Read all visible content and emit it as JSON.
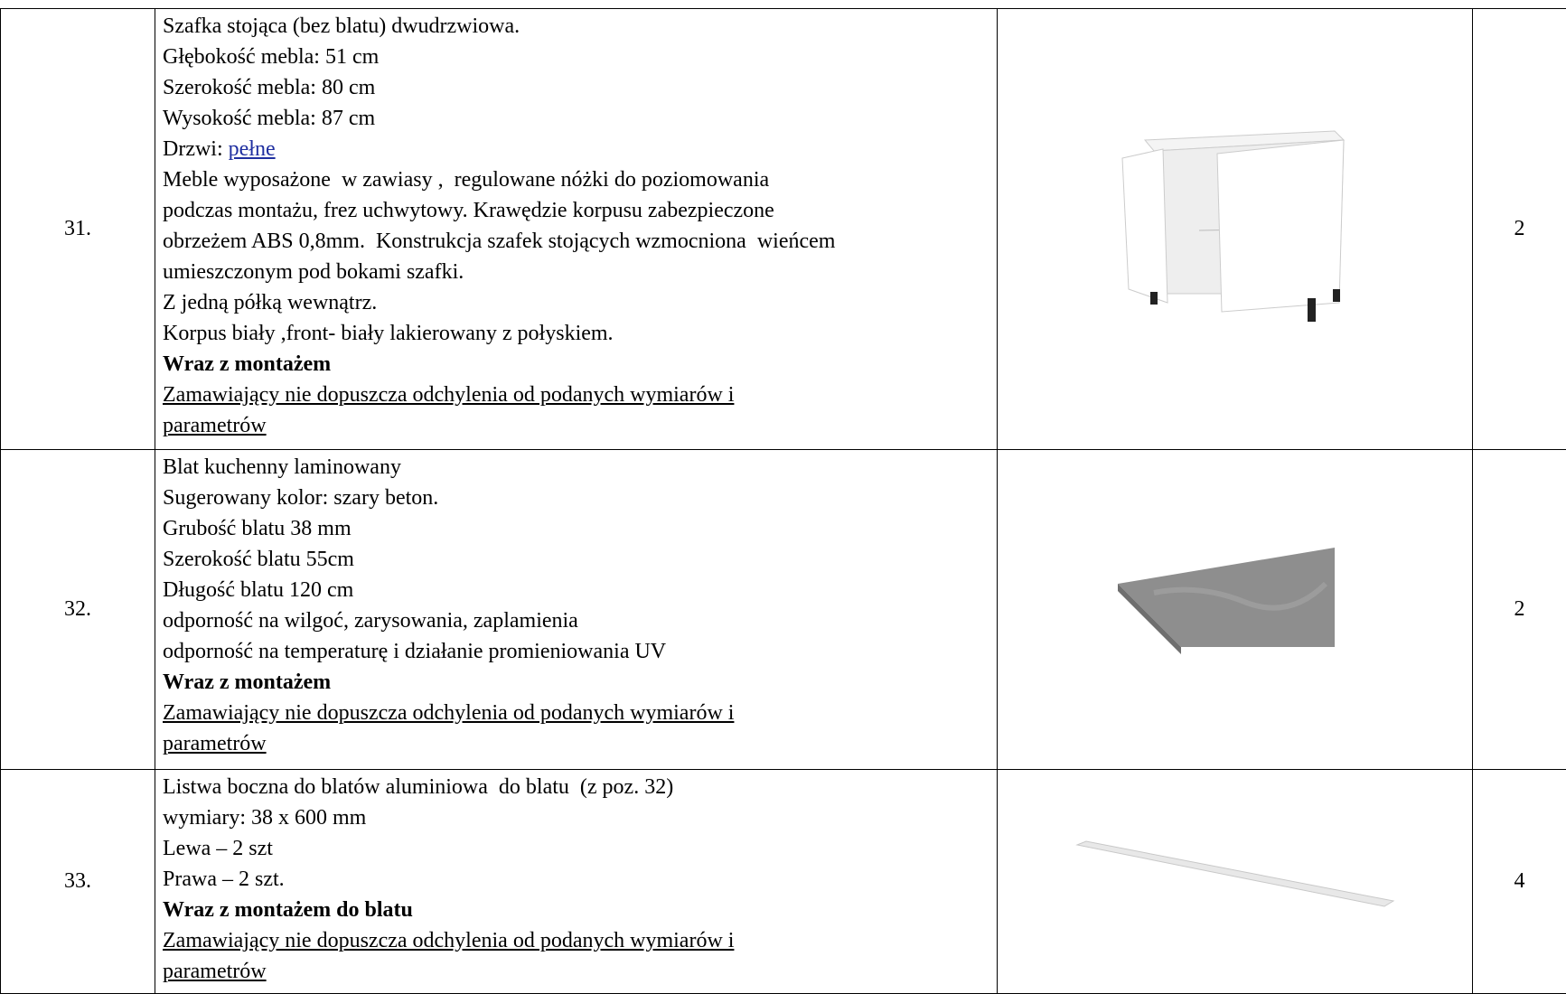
{
  "table": {
    "rows": [
      {
        "number": "31.",
        "quantity": "2",
        "lines": [
          {
            "text": "Szafka stojąca (bez blatu) dwudrzwiowa."
          },
          {
            "text": "Głębokość mebla: 51 cm"
          },
          {
            "text": "Szerokość mebla: 80 cm"
          },
          {
            "text": "Wysokość mebla: 87 cm"
          },
          {
            "text": "Drzwi: ",
            "link": "pełne"
          },
          {
            "text": "Meble wyposażone  w zawiasy ,  regulowane nóżki do poziomowania"
          },
          {
            "text": "podczas montażu, frez uchwytowy. Krawędzie korpusu zabezpieczone"
          },
          {
            "text": "obrzeżem ABS 0,8mm.  Konstrukcja szafek stojących wzmocniona  wieńcem"
          },
          {
            "text": "umieszczonym pod bokami szafki."
          },
          {
            "text": "Z jedną półką wewnątrz."
          },
          {
            "text": "Korpus biały ,front- biały lakierowany z połyskiem."
          },
          {
            "text": "Wraz z montażem",
            "style": "bold"
          },
          {
            "text": "Zamawiający nie dopuszcza odchylenia od podanych wymiarów i",
            "style": "underline"
          },
          {
            "text": "parametrów",
            "style": "underline"
          }
        ]
      },
      {
        "number": "32.",
        "quantity": "2",
        "lines": [
          {
            "text": "Blat kuchenny laminowany"
          },
          {
            "text": "Sugerowany kolor: szary beton."
          },
          {
            "text": "Grubość blatu 38 mm"
          },
          {
            "text": "Szerokość blatu 55cm"
          },
          {
            "text": "Długość blatu 120 cm"
          },
          {
            "text": "odporność na wilgoć, zarysowania, zaplamienia"
          },
          {
            "text": "odporność na temperaturę i działanie promieniowania UV"
          },
          {
            "text": "Wraz z montażem",
            "style": "bold"
          },
          {
            "text": "Zamawiający nie dopuszcza odchylenia od podanych wymiarów i",
            "style": "underline"
          },
          {
            "text": "parametrów",
            "style": "underline"
          }
        ]
      },
      {
        "number": "33.",
        "quantity": "4",
        "lines": [
          {
            "text": "Listwa boczna do blatów aluminiowa  do blatu  (z poz. 32)"
          },
          {
            "text": "wymiary: 38 x 600 mm"
          },
          {
            "text": "Lewa – 2 szt"
          },
          {
            "text": "Prawa – 2 szt."
          },
          {
            "text": "Wraz z montażem do blatu",
            "style": "bold"
          },
          {
            "text": "Zamawiający nie dopuszcza odchylenia od podanych wymiarów i",
            "style": "underline"
          },
          {
            "text": "parametrów",
            "style": "underline"
          }
        ]
      }
    ]
  }
}
